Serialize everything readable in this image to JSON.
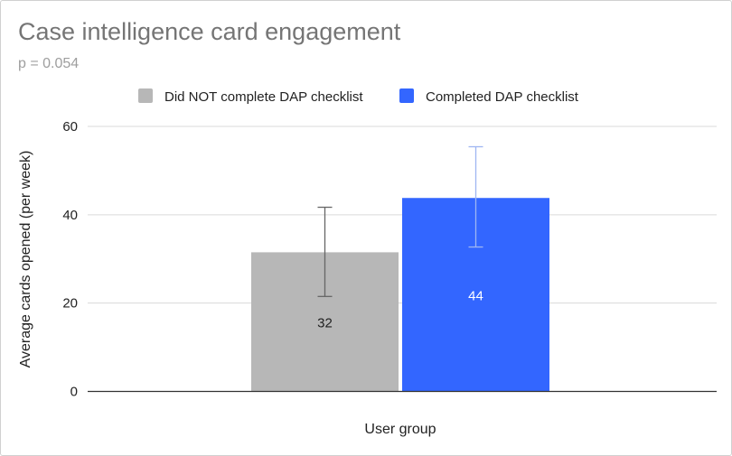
{
  "chart_data": {
    "type": "bar",
    "title": "Case intelligence card engagement",
    "subtitle": "p = 0.054",
    "xlabel": "User group",
    "ylabel": "Average cards opened (per week)",
    "ylim": [
      0,
      60
    ],
    "yticks": [
      0,
      20,
      40,
      60
    ],
    "grid": true,
    "legend_position": "top",
    "series": [
      {
        "name": "Did NOT complete DAP checklist",
        "color": "#b7b7b7",
        "value": 31.5,
        "label": "32",
        "label_color": "#222222",
        "error_low": 21.5,
        "error_high": 41.7,
        "error_color": "#666666"
      },
      {
        "name": "Completed DAP checklist",
        "color": "#3366ff",
        "value": 43.8,
        "label": "44",
        "label_color": "#ffffff",
        "error_low": 32.7,
        "error_high": 55.4,
        "error_color": "#9fb6f2"
      }
    ]
  }
}
